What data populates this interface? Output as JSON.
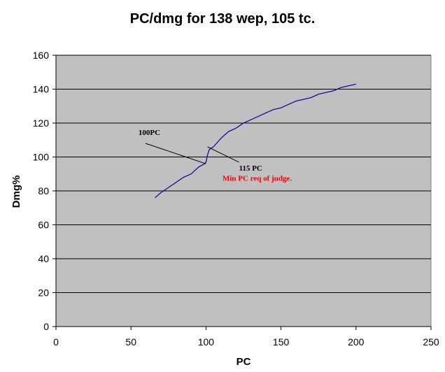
{
  "chart_data": {
    "type": "line",
    "title": "PC/dmg for 138 wep, 105 tc.",
    "xlabel": "PC",
    "ylabel": "Dmg%",
    "xlim": [
      0,
      250
    ],
    "ylim": [
      0,
      160
    ],
    "x_ticks": [
      0,
      50,
      100,
      150,
      200,
      250
    ],
    "y_ticks": [
      0,
      20,
      40,
      60,
      80,
      100,
      120,
      140,
      160
    ],
    "grid": "horizontal",
    "legend": "none",
    "plot_background": "#c0c0c0",
    "series": [
      {
        "color": "#1010a0",
        "x": [
          66,
          70,
          75,
          80,
          85,
          90,
          95,
          99,
          100,
          101,
          102,
          103,
          105,
          110,
          115,
          120,
          125,
          130,
          135,
          140,
          145,
          150,
          155,
          160,
          165,
          170,
          175,
          180,
          185,
          190,
          195,
          200
        ],
        "y": [
          76,
          79,
          82,
          85,
          88,
          90,
          94,
          96,
          97,
          101,
          104,
          105,
          106,
          111,
          115,
          117,
          120,
          122,
          124,
          126,
          128,
          129,
          131,
          133,
          134,
          135,
          137,
          138,
          139,
          141,
          142,
          143
        ]
      }
    ],
    "annotations": [
      {
        "text": "100PC",
        "color": "#000000",
        "arrow_to": [
          100,
          96
        ],
        "text_at": [
          55,
          113
        ]
      },
      {
        "text": "115 PC",
        "color": "#000000",
        "arrow_to": [
          101,
          106
        ],
        "text_at": [
          122,
          92
        ]
      },
      {
        "text": "Min PC req of judge.",
        "color": "#ff0000",
        "text_at": [
          111,
          86
        ]
      }
    ]
  }
}
